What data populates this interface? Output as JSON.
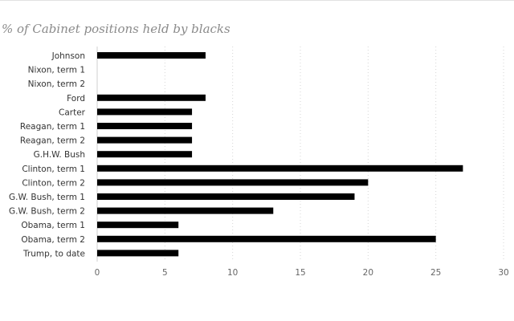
{
  "chart_data": {
    "type": "bar",
    "orientation": "horizontal",
    "title": "% of Cabinet positions held by blacks",
    "categories": [
      "Johnson",
      "Nixon, term 1",
      "Nixon, term 2",
      "Ford",
      "Carter",
      "Reagan, term 1",
      "Reagan, term 2",
      "G.H.W. Bush",
      "Clinton, term 1",
      "Clinton, term 2",
      "G.W. Bush, term 1",
      "G.W. Bush, term 2",
      "Obama, term 1",
      "Obama, term 2",
      "Trump, to date"
    ],
    "values": [
      8,
      0,
      0,
      8,
      7,
      7,
      7,
      7,
      27,
      20,
      19,
      13,
      6,
      25,
      6
    ],
    "xlim": [
      0,
      30
    ],
    "xticks": [
      0,
      5,
      10,
      15,
      20,
      25,
      30
    ],
    "grid": "vertical dotted",
    "bar_color": "#000000"
  }
}
